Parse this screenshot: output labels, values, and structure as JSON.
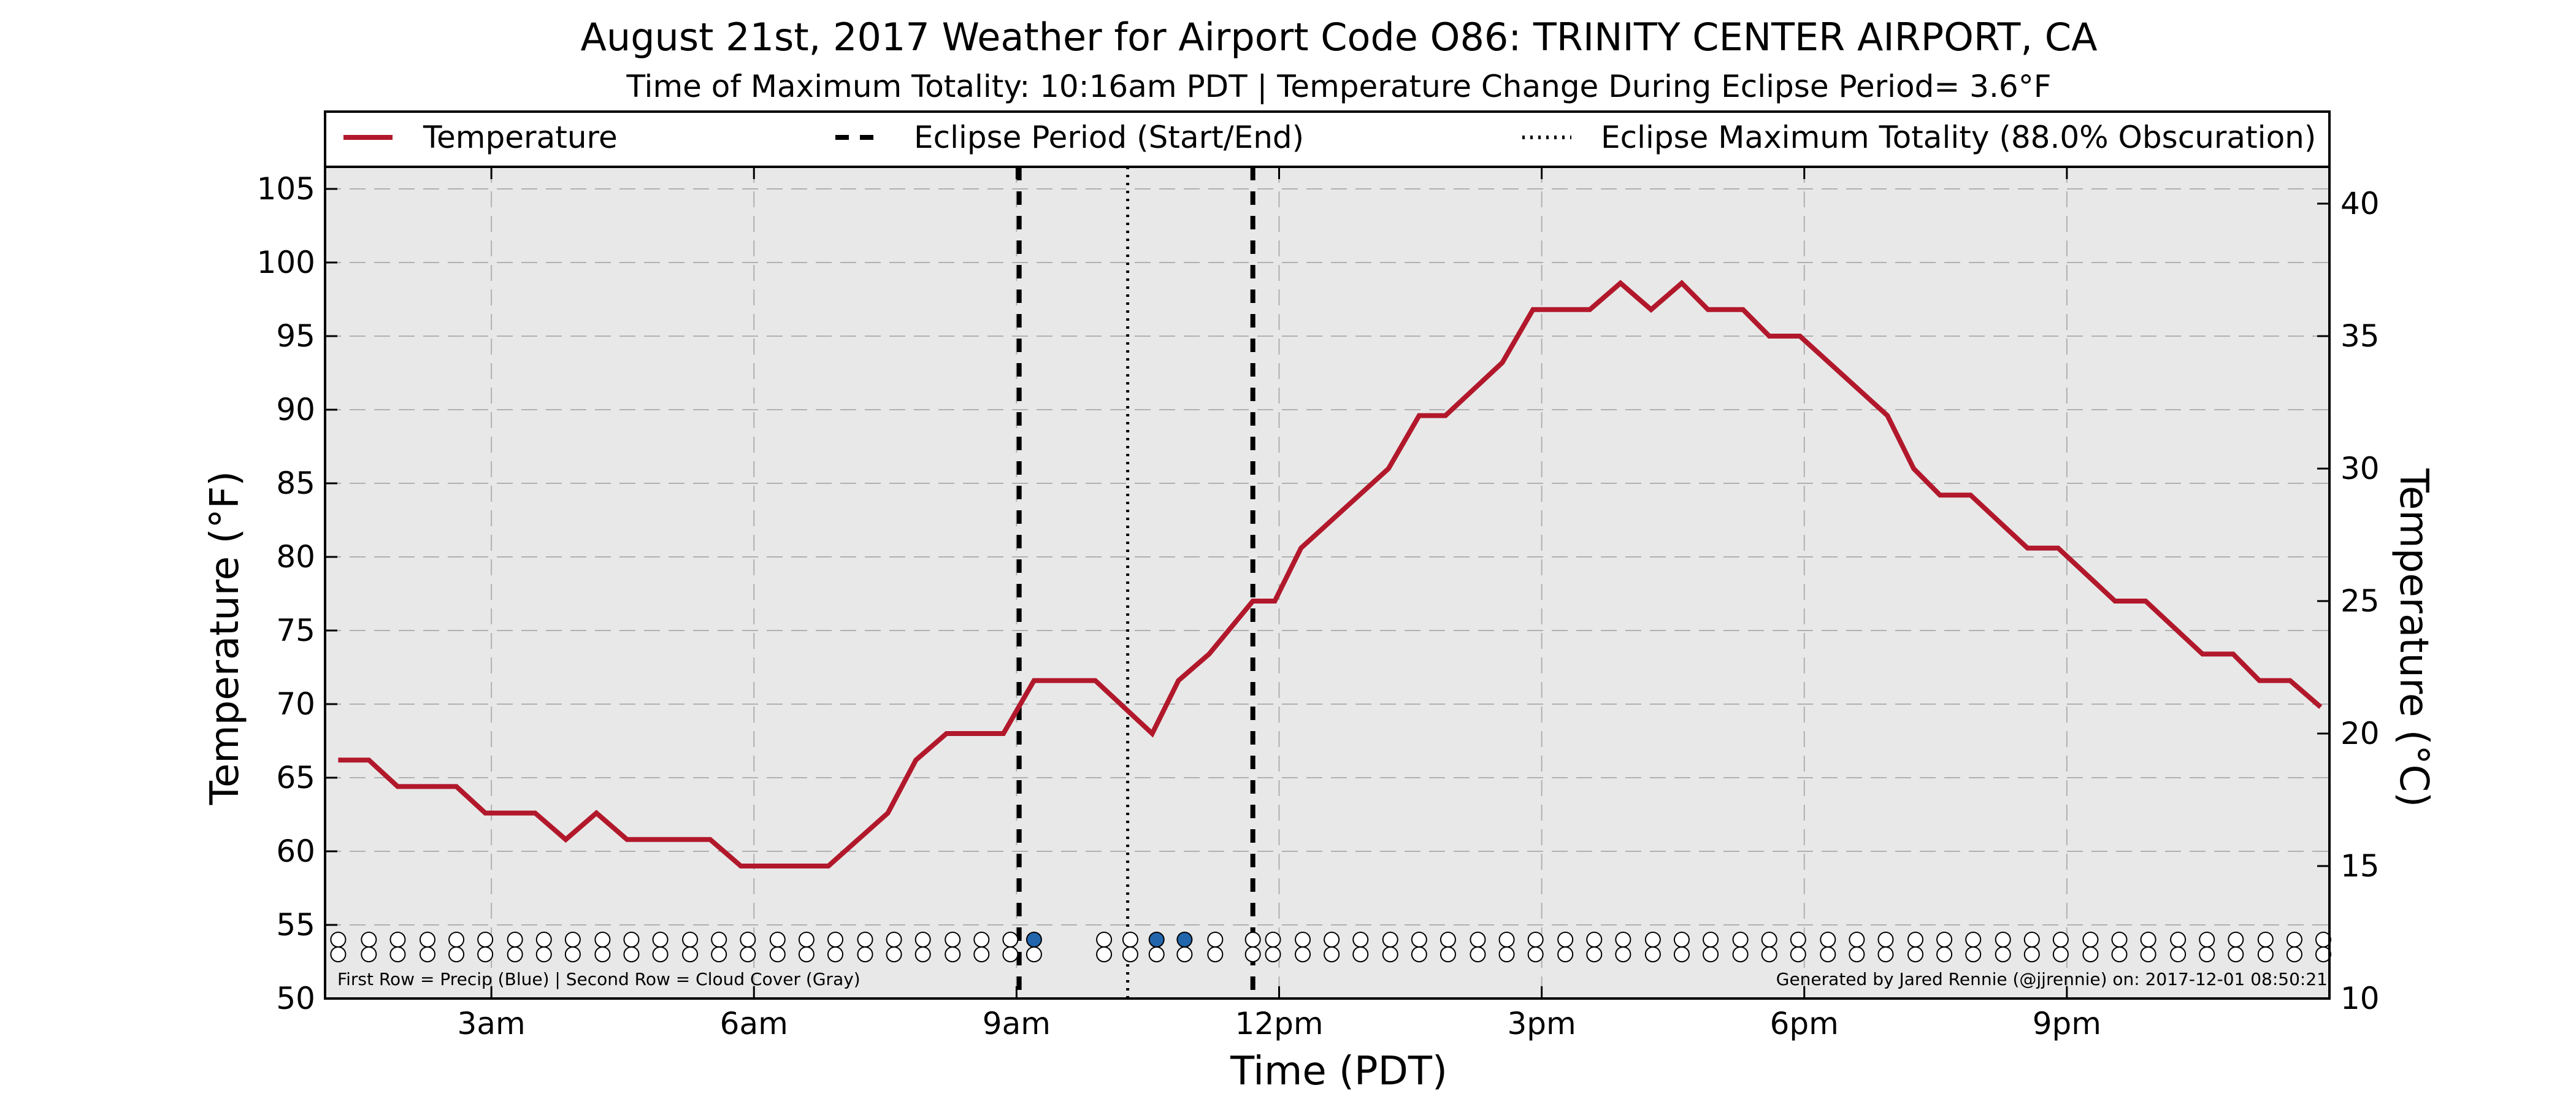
{
  "chart_data": {
    "type": "line",
    "title": "August 21st, 2017 Weather for Airport Code O86: TRINITY CENTER AIRPORT, CA",
    "subtitle": "Time of Maximum Totality: 10:16am PDT | Temperature Change During Eclipse Period= 3.6°F",
    "xlabel": "Time (PDT)",
    "ylabel": "Temperature (°F)",
    "y2label": "Temperature (°C)",
    "xlim": [
      1.1,
      24.0
    ],
    "ylim": [
      50,
      106.5
    ],
    "y2lim": [
      10,
      41.39
    ],
    "x_ticks": [
      {
        "x": 3,
        "label": "3am"
      },
      {
        "x": 6,
        "label": "6am"
      },
      {
        "x": 9,
        "label": "9am"
      },
      {
        "x": 12,
        "label": "12pm"
      },
      {
        "x": 15,
        "label": "3pm"
      },
      {
        "x": 18,
        "label": "6pm"
      },
      {
        "x": 21,
        "label": "9pm"
      }
    ],
    "y_ticks": [
      "50",
      "55",
      "60",
      "65",
      "70",
      "75",
      "80",
      "85",
      "90",
      "95",
      "100",
      "105"
    ],
    "y2_ticks": [
      "10",
      "15",
      "20",
      "25",
      "30",
      "35",
      "40"
    ],
    "grid": true,
    "legend_placement": "top",
    "legend": [
      {
        "label": "Temperature",
        "style": "solid"
      },
      {
        "label": "Eclipse Period (Start/End)",
        "style": "dashed"
      },
      {
        "label": "Eclipse Maximum Totality (88.0% Obscuration)",
        "style": "dotted"
      }
    ],
    "eclipse": {
      "start": 9.03,
      "end": 11.7,
      "max": 10.27
    },
    "series": [
      {
        "name": "Temperature",
        "color": "#b2182b",
        "points": [
          [
            1.25,
            66.2
          ],
          [
            1.6,
            66.2
          ],
          [
            1.93,
            64.4
          ],
          [
            2.6,
            64.4
          ],
          [
            2.93,
            62.6
          ],
          [
            3.5,
            62.6
          ],
          [
            3.85,
            60.8
          ],
          [
            4.2,
            62.6
          ],
          [
            4.55,
            60.8
          ],
          [
            5.5,
            60.8
          ],
          [
            5.85,
            59.0
          ],
          [
            6.85,
            59.0
          ],
          [
            7.53,
            62.6
          ],
          [
            7.85,
            66.2
          ],
          [
            8.2,
            68.0
          ],
          [
            8.85,
            68.0
          ],
          [
            9.2,
            71.6
          ],
          [
            9.9,
            71.6
          ],
          [
            10.55,
            68.0
          ],
          [
            10.85,
            71.6
          ],
          [
            11.2,
            73.4
          ],
          [
            11.7,
            77.0
          ],
          [
            11.95,
            77.0
          ],
          [
            12.25,
            80.6
          ],
          [
            13.25,
            86.0
          ],
          [
            13.6,
            89.6
          ],
          [
            13.9,
            89.6
          ],
          [
            14.55,
            93.2
          ],
          [
            14.9,
            96.8
          ],
          [
            15.55,
            96.8
          ],
          [
            15.9,
            98.6
          ],
          [
            16.25,
            96.8
          ],
          [
            16.6,
            98.6
          ],
          [
            16.9,
            96.8
          ],
          [
            17.3,
            96.8
          ],
          [
            17.6,
            95.0
          ],
          [
            17.95,
            95.0
          ],
          [
            18.95,
            89.6
          ],
          [
            19.25,
            86.0
          ],
          [
            19.55,
            84.2
          ],
          [
            19.9,
            84.2
          ],
          [
            20.55,
            80.6
          ],
          [
            20.9,
            80.6
          ],
          [
            21.55,
            77.0
          ],
          [
            21.9,
            77.0
          ],
          [
            22.55,
            73.4
          ],
          [
            22.9,
            73.4
          ],
          [
            23.2,
            71.6
          ],
          [
            23.55,
            71.6
          ],
          [
            23.9,
            69.8
          ]
        ]
      }
    ],
    "obs_times": [
      1.25,
      1.6,
      1.93,
      2.27,
      2.6,
      2.93,
      3.27,
      3.6,
      3.93,
      4.27,
      4.6,
      4.93,
      5.27,
      5.6,
      5.93,
      6.27,
      6.6,
      6.93,
      7.27,
      7.6,
      7.93,
      8.27,
      8.6,
      8.93,
      9.2,
      10.0,
      10.3,
      10.6,
      10.92,
      11.27,
      11.7,
      11.93,
      12.27,
      12.6,
      12.93,
      13.27,
      13.6,
      13.93,
      14.27,
      14.6,
      14.93,
      15.27,
      15.6,
      15.93,
      16.27,
      16.6,
      16.93,
      17.27,
      17.6,
      17.93,
      18.27,
      18.6,
      18.93,
      19.27,
      19.6,
      19.93,
      20.27,
      20.6,
      20.93,
      21.27,
      21.6,
      21.93,
      22.27,
      22.6,
      22.93,
      23.27,
      23.6,
      23.93
    ],
    "precip_obs": [
      9.2,
      10.6,
      10.92
    ],
    "marker_rows": {
      "precip": 54.0,
      "cloud": 53.0
    },
    "colors": {
      "plot_background": "#e8e8e8",
      "grid": "#b0b0b0",
      "precip": "#2166ac",
      "cloud_marker": "#ffffff"
    },
    "footnote_left": "First Row = Precip (Blue) | Second Row = Cloud Cover (Gray)",
    "footnote_right": "Generated by Jared Rennie (@jjrennie) on: 2017-12-01 08:50:21"
  }
}
